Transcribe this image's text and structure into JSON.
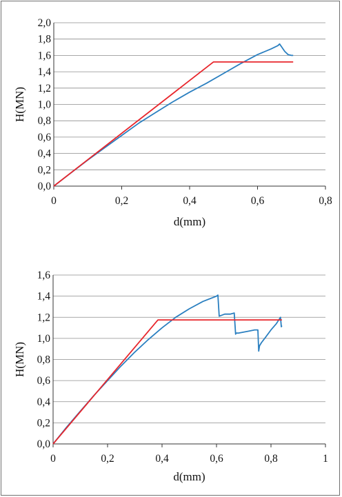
{
  "chart_data": [
    {
      "type": "line",
      "xlabel": "d(mm)",
      "ylabel": "H(MN)",
      "xlim": [
        0,
        0.8
      ],
      "ylim": [
        0,
        2.0
      ],
      "x_ticks": [
        "0",
        "0,2",
        "0,4",
        "0,6",
        "0,8"
      ],
      "y_ticks": [
        "0,0",
        "0,2",
        "0,4",
        "0,6",
        "0,8",
        "1,0",
        "1,2",
        "1,4",
        "1,6",
        "1,8",
        "2,0"
      ],
      "grid": "horizontal",
      "colors": {
        "measured": "#2a7fc0",
        "bilinear": "#e8262c"
      },
      "series": [
        {
          "color": "#2a7fc0",
          "x": [
            0,
            0.05,
            0.1,
            0.15,
            0.2,
            0.25,
            0.3,
            0.35,
            0.4,
            0.45,
            0.5,
            0.55,
            0.6,
            0.64,
            0.66,
            0.665,
            0.67,
            0.68,
            0.69,
            0.7,
            0.705
          ],
          "y": [
            0,
            0.16,
            0.32,
            0.47,
            0.62,
            0.77,
            0.9,
            1.03,
            1.15,
            1.26,
            1.38,
            1.5,
            1.61,
            1.68,
            1.72,
            1.74,
            1.71,
            1.65,
            1.61,
            1.6,
            1.6
          ]
        },
        {
          "color": "#e8262c",
          "x": [
            0,
            0.47,
            0.705
          ],
          "y": [
            0,
            1.52,
            1.52
          ]
        }
      ]
    },
    {
      "type": "line",
      "xlabel": "d(mm)",
      "ylabel": "H(MN)",
      "xlim": [
        0,
        1
      ],
      "ylim": [
        0,
        1.6
      ],
      "x_ticks": [
        "0",
        "0,2",
        "0,4",
        "0,6",
        "0,8",
        "1"
      ],
      "y_ticks": [
        "0,0",
        "0,2",
        "0,4",
        "0,6",
        "0,8",
        "1,0",
        "1,2",
        "1,4",
        "1,6"
      ],
      "grid": "horizontal",
      "colors": {
        "measured": "#2a7fc0",
        "bilinear": "#e8262c"
      },
      "series": [
        {
          "color": "#2a7fc0",
          "x": [
            0,
            0.05,
            0.1,
            0.15,
            0.2,
            0.25,
            0.3,
            0.35,
            0.4,
            0.45,
            0.5,
            0.55,
            0.6,
            0.605,
            0.61,
            0.62,
            0.63,
            0.65,
            0.665,
            0.67,
            0.672,
            0.68,
            0.7,
            0.72,
            0.74,
            0.752,
            0.755,
            0.758,
            0.765,
            0.78,
            0.8,
            0.82,
            0.83,
            0.835,
            0.838,
            0.84
          ],
          "y": [
            0,
            0.16,
            0.31,
            0.46,
            0.6,
            0.74,
            0.87,
            0.99,
            1.1,
            1.2,
            1.28,
            1.35,
            1.4,
            1.41,
            1.21,
            1.22,
            1.23,
            1.23,
            1.24,
            1.04,
            1.05,
            1.05,
            1.06,
            1.07,
            1.08,
            1.08,
            0.88,
            0.93,
            0.96,
            1.01,
            1.08,
            1.14,
            1.18,
            1.2,
            1.11,
            1.12
          ]
        },
        {
          "color": "#e8262c",
          "x": [
            0,
            0.385,
            0.84
          ],
          "y": [
            0,
            1.175,
            1.175
          ]
        }
      ]
    }
  ]
}
